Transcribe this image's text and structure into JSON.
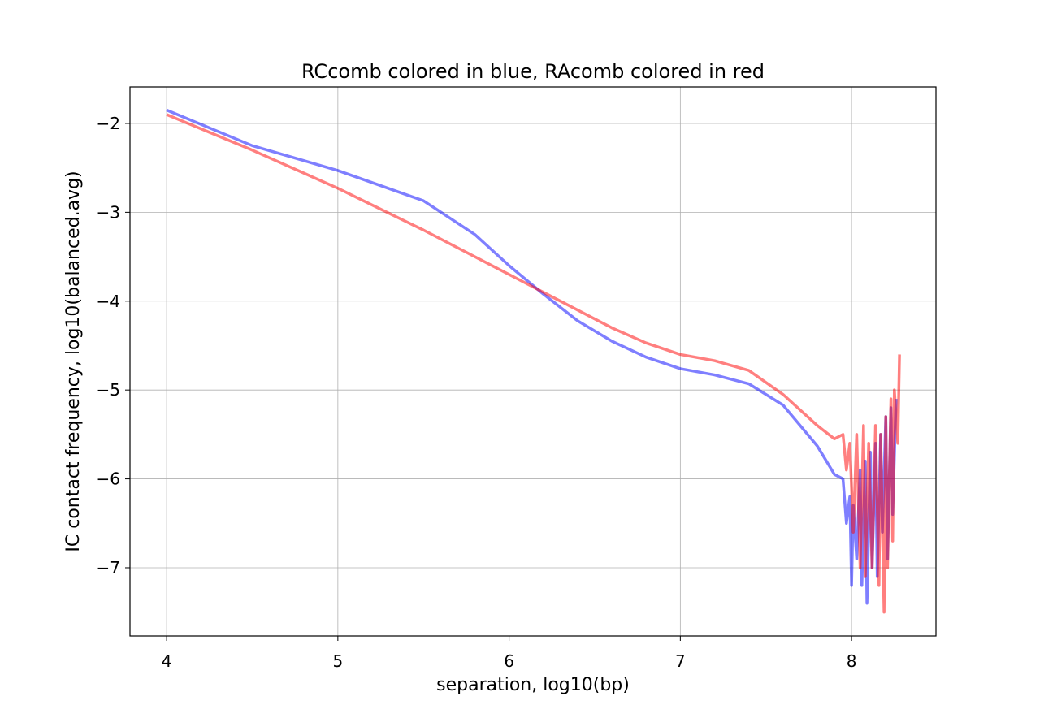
{
  "chart_data": {
    "type": "line",
    "title": "RCcomb colored in blue, RAcomb colored in red",
    "xlabel": "separation, log10(bp)",
    "ylabel": "IC contact frequency, log10(balanced.avg)",
    "xlim": [
      3.786,
      8.493
    ],
    "ylim": [
      -7.768,
      -1.589
    ],
    "xticks": [
      4,
      5,
      6,
      7,
      8
    ],
    "yticks": [
      {
        "value": -2,
        "label": "−2"
      },
      {
        "value": -3,
        "label": "−3"
      },
      {
        "value": -4,
        "label": "−4"
      },
      {
        "value": -5,
        "label": "−5"
      },
      {
        "value": -6,
        "label": "−6"
      },
      {
        "value": -7,
        "label": "−7"
      }
    ],
    "grid": true,
    "series": [
      {
        "color": "#0000ff",
        "x": [
          4.0,
          4.5,
          5.0,
          5.5,
          5.8,
          6.0,
          6.2,
          6.4,
          6.6,
          6.8,
          7.0,
          7.2,
          7.4,
          7.6,
          7.8,
          7.9,
          7.95,
          7.97,
          7.99,
          8.0,
          8.01,
          8.03,
          8.05,
          8.06,
          8.08,
          8.09,
          8.11,
          8.12,
          8.14,
          8.15,
          8.17,
          8.18,
          8.2,
          8.21,
          8.23,
          8.24,
          8.26
        ],
        "values": [
          -1.85,
          -2.25,
          -2.53,
          -2.87,
          -3.25,
          -3.6,
          -3.92,
          -4.22,
          -4.45,
          -4.63,
          -4.76,
          -4.83,
          -4.93,
          -5.17,
          -5.63,
          -5.95,
          -6.0,
          -6.5,
          -6.2,
          -7.2,
          -6.3,
          -6.9,
          -5.9,
          -7.2,
          -5.8,
          -7.4,
          -5.7,
          -7.0,
          -5.6,
          -7.1,
          -5.5,
          -6.6,
          -5.3,
          -6.9,
          -5.2,
          -6.4,
          -5.1
        ]
      },
      {
        "color": "#ff0000",
        "x": [
          4.0,
          4.5,
          5.0,
          5.5,
          6.0,
          6.2,
          6.4,
          6.6,
          6.8,
          7.0,
          7.2,
          7.4,
          7.6,
          7.8,
          7.9,
          7.95,
          7.97,
          7.99,
          8.01,
          8.03,
          8.05,
          8.07,
          8.08,
          8.1,
          8.12,
          8.14,
          8.16,
          8.17,
          8.19,
          8.2,
          8.21,
          8.23,
          8.24,
          8.25,
          8.27,
          8.28
        ],
        "values": [
          -1.9,
          -2.3,
          -2.73,
          -3.2,
          -3.7,
          -3.9,
          -4.1,
          -4.3,
          -4.47,
          -4.6,
          -4.67,
          -4.78,
          -5.05,
          -5.4,
          -5.55,
          -5.5,
          -5.9,
          -5.6,
          -6.6,
          -5.5,
          -7.0,
          -5.4,
          -7.1,
          -5.6,
          -7.0,
          -5.4,
          -7.2,
          -5.5,
          -7.5,
          -5.3,
          -7.0,
          -5.1,
          -6.7,
          -5.0,
          -5.6,
          -4.6
        ]
      }
    ]
  }
}
